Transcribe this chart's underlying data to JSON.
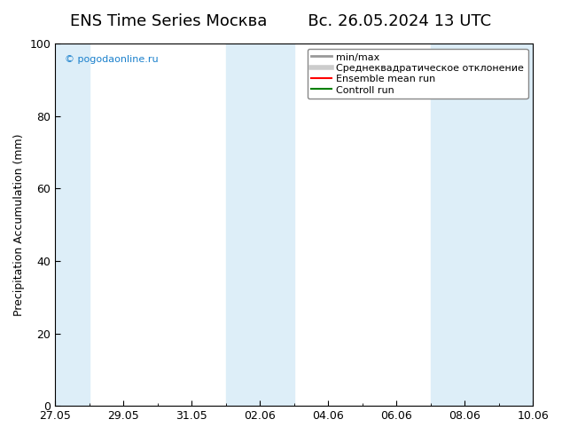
{
  "title": "ENS Time Series Москва",
  "title2": "Вс. 26.05.2024 13 UTC",
  "ylabel": "Precipitation Accumulation (mm)",
  "ylim": [
    0,
    100
  ],
  "yticks": [
    0,
    20,
    40,
    60,
    80,
    100
  ],
  "watermark": "© pogodaonline.ru",
  "xtick_labels": [
    "27.05",
    "29.05",
    "31.05",
    "02.06",
    "04.06",
    "06.06",
    "08.06",
    "10.06"
  ],
  "xtick_positions": [
    0,
    2,
    4,
    6,
    8,
    10,
    12,
    14
  ],
  "x_num_days": 14,
  "band_color": "#ddeef8",
  "band_ranges": [
    [
      0,
      1
    ],
    [
      5,
      7
    ],
    [
      11,
      14
    ]
  ],
  "background_color": "#ffffff",
  "legend_labels": [
    "min/max",
    "Среднеквадратическое отклонение",
    "Ensemble mean run",
    "Controll run"
  ],
  "legend_colors": [
    "#aaaaaa",
    "#cccccc",
    "#ff0000",
    "#008000"
  ],
  "title_fontsize": 13,
  "ylabel_fontsize": 9,
  "tick_fontsize": 9,
  "legend_fontsize": 8,
  "watermark_fontsize": 8,
  "watermark_color": "#1a80cc"
}
